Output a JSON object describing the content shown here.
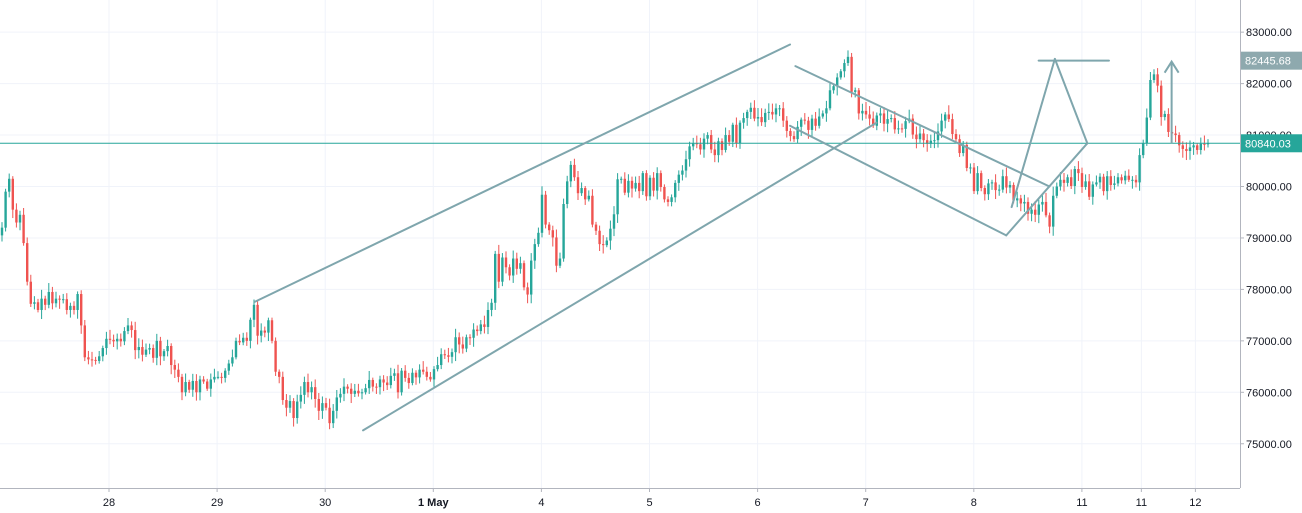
{
  "chart_data": {
    "type": "candlestick",
    "title": "",
    "xlabel": "",
    "ylabel": "",
    "ylim": [
      74000,
      83400
    ],
    "grid": true,
    "y_ticks": [
      75000,
      76000,
      77000,
      78000,
      79000,
      80000,
      81000,
      82000,
      83000
    ],
    "y_tick_labels": [
      "75000.00",
      "76000.00",
      "77000.00",
      "78000.00",
      "79000.00",
      "80000.00",
      "81000.00",
      "82000.00",
      "83000.00"
    ],
    "x_tick_labels": [
      "28",
      "29",
      "30",
      "1 May",
      "4",
      "5",
      "6",
      "7",
      "8",
      "11",
      "11",
      "12"
    ],
    "bold_x_tick": "1 May",
    "price_tags": [
      {
        "label": "82445.68",
        "value": 82445.68,
        "color": "#8ea9ae"
      },
      {
        "label": "80840.03",
        "value": 80840.03,
        "color": "#26a69a"
      }
    ],
    "horizontal_line": {
      "value": 80840.03,
      "color": "#26a69a"
    },
    "colors": {
      "up": "#26a69a",
      "down": "#ef5350",
      "drawing": "#7fa6ad",
      "grid": "#f0f3fa",
      "axis": "#b2b5be"
    },
    "series": {
      "close": [
        79200,
        79900,
        80150,
        79550,
        79300,
        79450,
        78900,
        78150,
        77720,
        77750,
        77600,
        77820,
        77700,
        77950,
        77730,
        77820,
        77800,
        77810,
        77600,
        77680,
        77600,
        77910,
        77300,
        76680,
        76640,
        76630,
        76610,
        76700,
        76860,
        77040,
        77020,
        76990,
        77040,
        76990,
        77190,
        77300,
        77210,
        76820,
        76880,
        76730,
        76830,
        76860,
        76670,
        77000,
        76700,
        76800,
        76900,
        76530,
        76440,
        76300,
        76000,
        76200,
        76050,
        76220,
        76000,
        76250,
        76210,
        76070,
        76250,
        76300,
        76300,
        76280,
        76420,
        76560,
        76680,
        77000,
        76970,
        77060,
        77000,
        77410,
        77700,
        77100,
        77200,
        77160,
        77400,
        77000,
        76400,
        76300,
        75850,
        75700,
        75830,
        75500,
        75820,
        75950,
        76200,
        76000,
        76100,
        75870,
        75640,
        75790,
        75700,
        75400,
        75640,
        75900,
        75970,
        76110,
        76070,
        75970,
        76030,
        75980,
        76000,
        76080,
        76240,
        76110,
        76100,
        76250,
        76190,
        76140,
        76320,
        76370,
        76000,
        76420,
        76280,
        76180,
        76380,
        76290,
        76440,
        76400,
        76300,
        76250,
        76450,
        76530,
        76740,
        76720,
        76690,
        76780,
        77070,
        76930,
        76850,
        77070,
        77060,
        77220,
        77190,
        77320,
        77270,
        77600,
        77740,
        78690,
        78150,
        78620,
        78430,
        78270,
        78600,
        78400,
        78510,
        78040,
        77900,
        78560,
        78880,
        79100,
        79840,
        79260,
        79150,
        79010,
        78460,
        78600,
        79660,
        80100,
        80420,
        80180,
        79870,
        79970,
        79750,
        79820,
        79260,
        79140,
        78880,
        78860,
        78950,
        79180,
        79460,
        80140,
        80150,
        79880,
        80110,
        79960,
        80070,
        79910,
        80260,
        79810,
        80170,
        79920,
        80260,
        79990,
        79750,
        79700,
        79790,
        80070,
        80230,
        80310,
        80530,
        80780,
        80840,
        80820,
        80720,
        80930,
        81000,
        80720,
        80610,
        80880,
        80710,
        81000,
        80870,
        81200,
        80840,
        81240,
        81330,
        81450,
        81530,
        81320,
        81350,
        81250,
        81430,
        81450,
        81400,
        81520,
        81520,
        81280,
        81080,
        80980,
        80920,
        81160,
        81300,
        81280,
        81100,
        81320,
        81180,
        81360,
        81420,
        81520,
        81870,
        81950,
        82120,
        82240,
        82400,
        82520,
        81840,
        81870,
        81420,
        81470,
        81400,
        81320,
        81180,
        81380,
        81420,
        81220,
        81310,
        81330,
        81110,
        81130,
        81120,
        81270,
        81320,
        81010,
        80920,
        81030,
        80900,
        80830,
        80890,
        80900,
        81070,
        81280,
        81400,
        81310,
        81020,
        80920,
        80650,
        80810,
        80360,
        80370,
        79910,
        80260,
        79970,
        79850,
        80060,
        80080,
        79930,
        79940,
        80200,
        79980,
        80030,
        79730,
        79770,
        79670,
        79700,
        79470,
        79550,
        79450,
        79650,
        79700,
        79440,
        79220,
        79820,
        80000,
        80130,
        80070,
        80180,
        80010,
        80340,
        80260,
        79990,
        80100,
        79800,
        80040,
        80080,
        80190,
        79910,
        80200,
        80030,
        80060,
        80180,
        80120,
        80210,
        80130,
        80130,
        80080,
        80610,
        80840,
        81340,
        82070,
        82180,
        81960,
        81350,
        81410,
        81060,
        81030,
        81000,
        80800,
        80730,
        80690,
        80760,
        80800,
        80710,
        80830,
        80820,
        80840
      ]
    },
    "drawings": [
      {
        "name": "upper-channel-line",
        "points": [
          [
            29.35,
            77760
          ],
          [
            34.3,
            82760
          ]
        ]
      },
      {
        "name": "lower-channel-line",
        "points": [
          [
            30.35,
            75260
          ],
          [
            35.1,
            81240
          ]
        ]
      },
      {
        "name": "falling-upper-line",
        "points": [
          [
            34.35,
            82340
          ],
          [
            36.7,
            80000
          ]
        ]
      },
      {
        "name": "falling-lower-line",
        "points": [
          [
            34.3,
            81180
          ],
          [
            36.3,
            79050
          ]
        ]
      },
      {
        "name": "pennant-upper-line",
        "points": [
          [
            36.35,
            79600
          ],
          [
            36.75,
            82480
          ]
        ]
      },
      {
        "name": "pennant-lower-line",
        "points": [
          [
            36.3,
            79050
          ],
          [
            37.05,
            80840
          ]
        ]
      },
      {
        "name": "pennant-right-line",
        "points": [
          [
            36.75,
            82480
          ],
          [
            37.05,
            80840
          ]
        ]
      },
      {
        "name": "target-line",
        "points": [
          [
            36.6,
            82445.68
          ],
          [
            37.25,
            82445.68
          ]
        ]
      }
    ]
  }
}
